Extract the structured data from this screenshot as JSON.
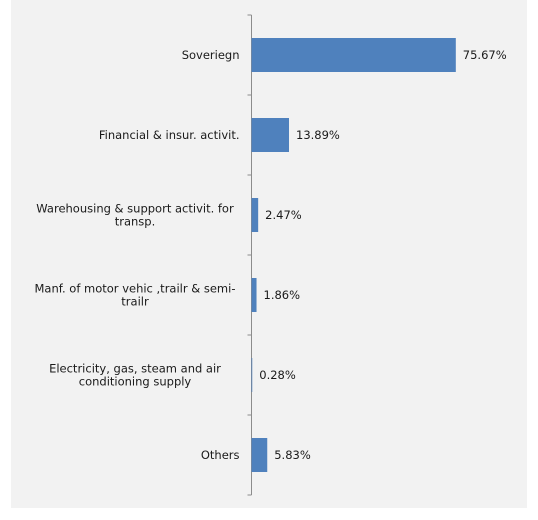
{
  "chart_data": {
    "type": "bar",
    "orientation": "horizontal",
    "categories": [
      [
        "Soveriegn"
      ],
      [
        "Financial & insur. activit."
      ],
      [
        "Warehousing & support activit. for",
        "transp."
      ],
      [
        "Manf. of motor vehic ,trailr & semi-",
        "trailr"
      ],
      [
        "Electricity, gas, steam and air",
        "conditioning supply"
      ],
      [
        "Others"
      ]
    ],
    "values": [
      75.67,
      13.89,
      2.47,
      1.86,
      0.28,
      5.83
    ],
    "value_labels": [
      "75.67%",
      "13.89%",
      "2.47%",
      "1.86%",
      "0.28%",
      "5.83%"
    ],
    "xlim": [
      0,
      100
    ],
    "grid": false,
    "legend": "none",
    "bar_color": "#4f81bd"
  }
}
